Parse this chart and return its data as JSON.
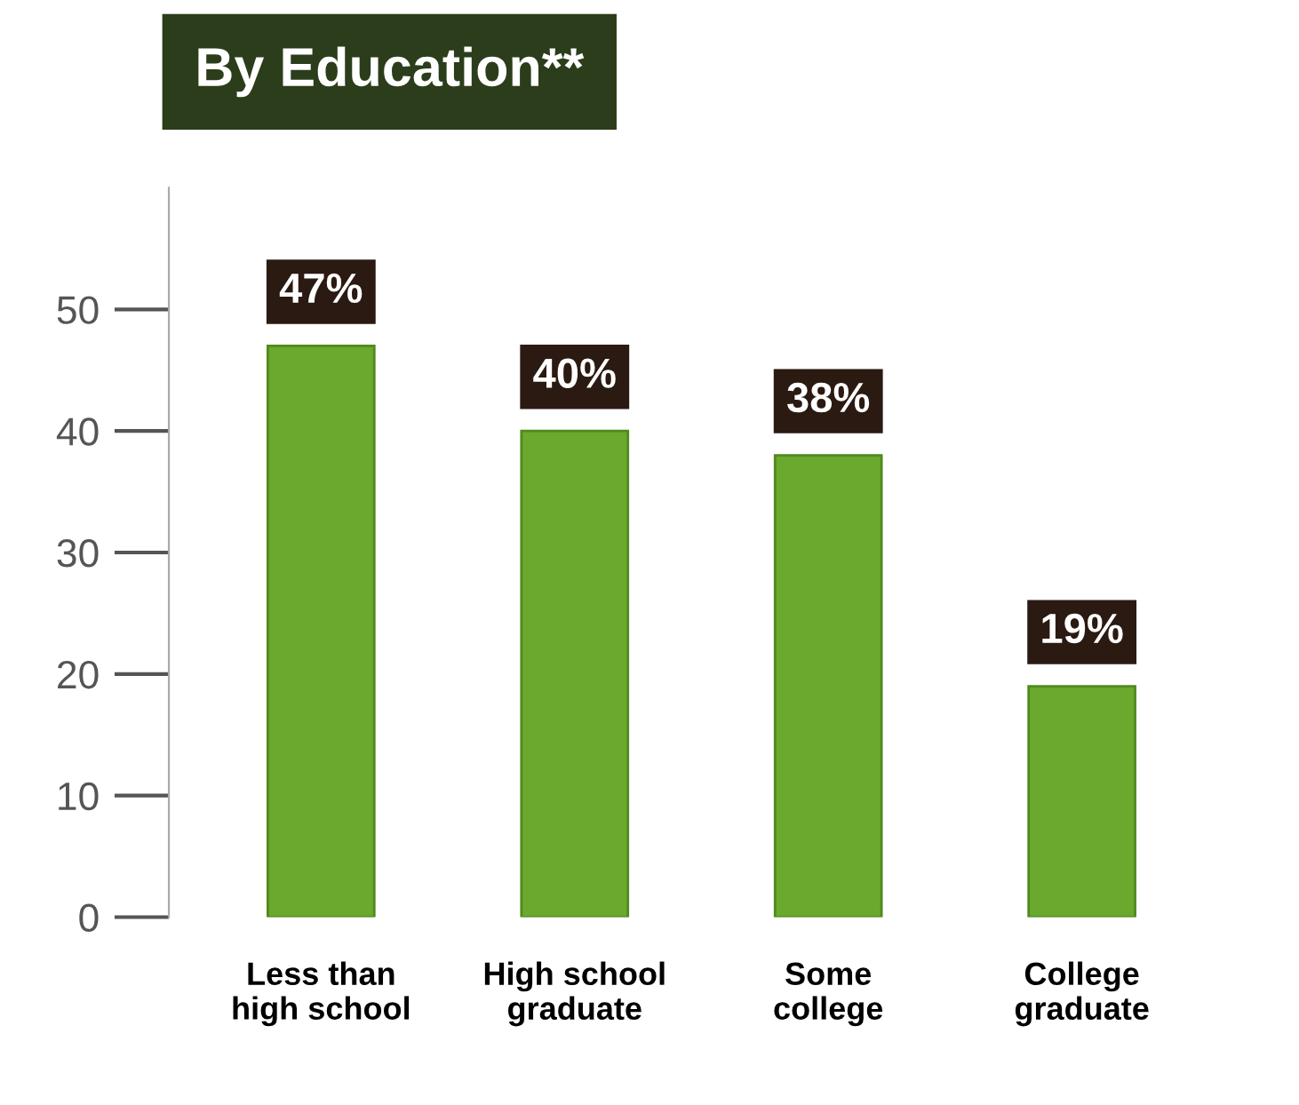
{
  "chart_data": {
    "type": "bar",
    "title": "By Education**",
    "categories": [
      "Less than\nhigh school",
      "High school\ngraduate",
      "Some\ncollege",
      "College\ngraduate"
    ],
    "values": [
      47,
      40,
      38,
      19
    ],
    "value_labels": [
      "47%",
      "40%",
      "38%",
      "19%"
    ],
    "color": "#6aa82e",
    "ylim": [
      0,
      60
    ],
    "yticks": [
      0,
      10,
      20,
      30,
      40,
      50
    ],
    "grid": false
  }
}
